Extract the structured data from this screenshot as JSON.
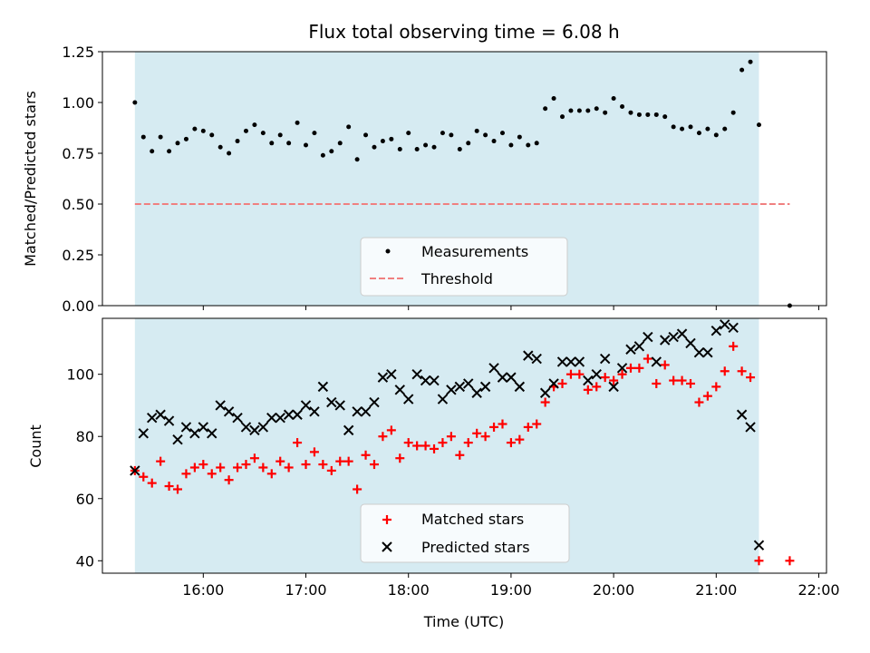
{
  "chart_data": [
    {
      "type": "scatter",
      "title": "Flux total observing time = 6.08 h",
      "xlabel": "",
      "ylabel": "Matched/Predicted stars",
      "ylim": [
        0,
        1.25
      ],
      "yticks": [
        "0.00",
        "0.25",
        "0.50",
        "0.75",
        "1.00",
        "1.25"
      ],
      "observing_window": [
        "15:20",
        "21:25"
      ],
      "threshold": 0.5,
      "legend": {
        "location": "lower-center",
        "items": [
          "Measurements",
          "Threshold"
        ]
      },
      "series": [
        {
          "name": "Measurements",
          "x": [
            "15:20",
            "15:25",
            "15:30",
            "15:35",
            "15:40",
            "15:45",
            "15:50",
            "15:55",
            "16:00",
            "16:05",
            "16:10",
            "16:15",
            "16:20",
            "16:25",
            "16:30",
            "16:35",
            "16:40",
            "16:45",
            "16:50",
            "16:55",
            "17:00",
            "17:05",
            "17:10",
            "17:15",
            "17:20",
            "17:25",
            "17:30",
            "17:35",
            "17:40",
            "17:45",
            "17:50",
            "17:55",
            "18:00",
            "18:05",
            "18:10",
            "18:15",
            "18:20",
            "18:25",
            "18:30",
            "18:35",
            "18:40",
            "18:45",
            "18:50",
            "18:55",
            "19:00",
            "19:05",
            "19:10",
            "19:15",
            "19:20",
            "19:25",
            "19:30",
            "19:35",
            "19:40",
            "19:45",
            "19:50",
            "19:55",
            "20:00",
            "20:05",
            "20:10",
            "20:15",
            "20:20",
            "20:25",
            "20:30",
            "20:35",
            "20:40",
            "20:45",
            "20:50",
            "20:55",
            "21:00",
            "21:05",
            "21:10",
            "21:15",
            "21:20",
            "21:25",
            "21:43"
          ],
          "values": [
            1.0,
            0.83,
            0.76,
            0.83,
            0.76,
            0.8,
            0.82,
            0.87,
            0.86,
            0.84,
            0.78,
            0.75,
            0.81,
            0.86,
            0.89,
            0.85,
            0.8,
            0.84,
            0.8,
            0.9,
            0.79,
            0.85,
            0.74,
            0.76,
            0.8,
            0.88,
            0.72,
            0.84,
            0.78,
            0.81,
            0.82,
            0.77,
            0.85,
            0.77,
            0.79,
            0.78,
            0.85,
            0.84,
            0.77,
            0.8,
            0.86,
            0.84,
            0.81,
            0.85,
            0.79,
            0.83,
            0.79,
            0.8,
            0.97,
            1.02,
            0.93,
            0.96,
            0.96,
            0.96,
            0.97,
            0.95,
            1.02,
            0.98,
            0.95,
            0.94,
            0.94,
            0.94,
            0.93,
            0.88,
            0.87,
            0.88,
            0.85,
            0.87,
            0.84,
            0.87,
            0.95,
            1.16,
            1.2,
            0.89,
            0.0
          ]
        }
      ]
    },
    {
      "type": "scatter",
      "title": "",
      "xlabel": "Time (UTC)",
      "ylabel": "Count",
      "ylim": [
        36,
        118
      ],
      "yticks": [
        "40",
        "60",
        "80",
        "100"
      ],
      "xticks": [
        "16:00",
        "17:00",
        "18:00",
        "19:00",
        "20:00",
        "21:00",
        "22:00"
      ],
      "observing_window": [
        "15:20",
        "21:25"
      ],
      "legend": {
        "location": "lower-center",
        "items": [
          "Matched stars",
          "Predicted stars"
        ]
      },
      "series": [
        {
          "name": "Matched stars",
          "x": [
            "15:20",
            "15:25",
            "15:30",
            "15:35",
            "15:40",
            "15:45",
            "15:50",
            "15:55",
            "16:00",
            "16:05",
            "16:10",
            "16:15",
            "16:20",
            "16:25",
            "16:30",
            "16:35",
            "16:40",
            "16:45",
            "16:50",
            "16:55",
            "17:00",
            "17:05",
            "17:10",
            "17:15",
            "17:20",
            "17:25",
            "17:30",
            "17:35",
            "17:40",
            "17:45",
            "17:50",
            "17:55",
            "18:00",
            "18:05",
            "18:10",
            "18:15",
            "18:20",
            "18:25",
            "18:30",
            "18:35",
            "18:40",
            "18:45",
            "18:50",
            "18:55",
            "19:00",
            "19:05",
            "19:10",
            "19:15",
            "19:20",
            "19:25",
            "19:30",
            "19:35",
            "19:40",
            "19:45",
            "19:50",
            "19:55",
            "20:00",
            "20:05",
            "20:10",
            "20:15",
            "20:20",
            "20:25",
            "20:30",
            "20:35",
            "20:40",
            "20:45",
            "20:50",
            "20:55",
            "21:00",
            "21:05",
            "21:10",
            "21:15",
            "21:20",
            "21:25",
            "21:43"
          ],
          "values": [
            69,
            67,
            65,
            72,
            64,
            63,
            68,
            70,
            71,
            68,
            70,
            66,
            70,
            71,
            73,
            70,
            68,
            72,
            70,
            78,
            71,
            75,
            71,
            69,
            72,
            72,
            63,
            74,
            71,
            80,
            82,
            73,
            78,
            77,
            77,
            76,
            78,
            80,
            74,
            78,
            81,
            80,
            83,
            84,
            78,
            79,
            83,
            84,
            91,
            96,
            97,
            100,
            100,
            95,
            96,
            99,
            98,
            100,
            102,
            102,
            105,
            97,
            103,
            98,
            98,
            97,
            91,
            93,
            96,
            101,
            109,
            101,
            99,
            40,
            40
          ]
        },
        {
          "name": "Predicted stars",
          "x": [
            "15:20",
            "15:25",
            "15:30",
            "15:35",
            "15:40",
            "15:45",
            "15:50",
            "15:55",
            "16:00",
            "16:05",
            "16:10",
            "16:15",
            "16:20",
            "16:25",
            "16:30",
            "16:35",
            "16:40",
            "16:45",
            "16:50",
            "16:55",
            "17:00",
            "17:05",
            "17:10",
            "17:15",
            "17:20",
            "17:25",
            "17:30",
            "17:35",
            "17:40",
            "17:45",
            "17:50",
            "17:55",
            "18:00",
            "18:05",
            "18:10",
            "18:15",
            "18:20",
            "18:25",
            "18:30",
            "18:35",
            "18:40",
            "18:45",
            "18:50",
            "18:55",
            "19:00",
            "19:05",
            "19:10",
            "19:15",
            "19:20",
            "19:25",
            "19:30",
            "19:35",
            "19:40",
            "19:45",
            "19:50",
            "19:55",
            "20:00",
            "20:05",
            "20:10",
            "20:15",
            "20:20",
            "20:25",
            "20:30",
            "20:35",
            "20:40",
            "20:45",
            "20:50",
            "20:55",
            "21:00",
            "21:05",
            "21:10",
            "21:15",
            "21:20",
            "21:25"
          ],
          "values": [
            69,
            81,
            86,
            87,
            85,
            79,
            83,
            81,
            83,
            81,
            90,
            88,
            86,
            83,
            82,
            83,
            86,
            86,
            87,
            87,
            90,
            88,
            96,
            91,
            90,
            82,
            88,
            88,
            91,
            99,
            100,
            95,
            92,
            100,
            98,
            98,
            92,
            95,
            96,
            97,
            94,
            96,
            102,
            99,
            99,
            96,
            106,
            105,
            94,
            97,
            104,
            104,
            104,
            98,
            100,
            105,
            96,
            102,
            108,
            109,
            112,
            104,
            111,
            112,
            113,
            110,
            107,
            107,
            114,
            116,
            115,
            87,
            83,
            45
          ]
        }
      ]
    }
  ],
  "colors": {
    "window_fill": "#add8e6",
    "measurement": "#000000",
    "threshold": "#f08080",
    "matched": "#ff0000",
    "predicted": "#000000",
    "legend_bg": "#ffffff",
    "legend_border": "#cccccc"
  }
}
